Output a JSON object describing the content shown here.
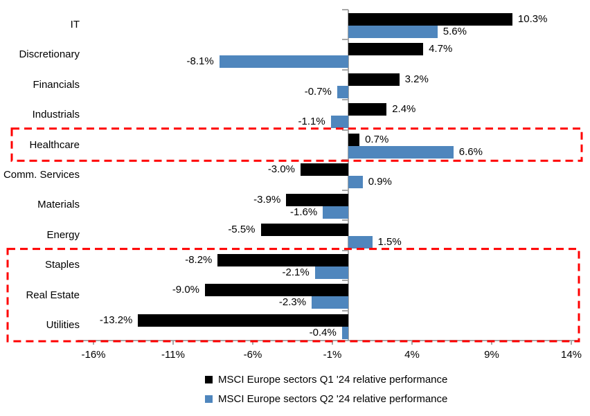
{
  "chart_data": {
    "type": "bar",
    "orientation": "horizontal",
    "title": "",
    "categories": [
      "IT",
      "Discretionary",
      "Financials",
      "Industrials",
      "Healthcare",
      "Comm. Services",
      "Materials",
      "Energy",
      "Staples",
      "Real Estate",
      "Utilities"
    ],
    "series": [
      {
        "name": "MSCI Europe sectors Q1 '24 relative performance",
        "color": "#000000",
        "values": [
          10.3,
          4.7,
          3.2,
          2.4,
          0.7,
          -3.0,
          -3.9,
          -5.5,
          -8.2,
          -9.0,
          -13.2
        ],
        "labels": [
          "10.3%",
          "4.7%",
          "3.2%",
          "2.4%",
          "0.7%",
          "-3.0%",
          "-3.9%",
          "-5.5%",
          "-8.2%",
          "-9.0%",
          "-13.2%"
        ]
      },
      {
        "name": "MSCI Europe sectors Q2 '24 relative performance",
        "color": "#4f86bd",
        "values": [
          5.6,
          -8.1,
          -0.7,
          -1.1,
          6.6,
          0.9,
          -1.6,
          1.5,
          -2.1,
          -2.3,
          -0.4
        ],
        "labels": [
          "5.6%",
          "-8.1%",
          "-0.7%",
          "-1.1%",
          "6.6%",
          "0.9%",
          "-1.6%",
          "1.5%",
          "-2.1%",
          "-2.3%",
          "-0.4%"
        ]
      }
    ],
    "x_axis": {
      "ticks": [
        "-16%",
        "-11%",
        "-6%",
        "-1%",
        "4%",
        "9%",
        "14%"
      ],
      "tick_values": [
        -16,
        -11,
        -6,
        -1,
        4,
        9,
        14
      ],
      "min": -17,
      "max": 14.5,
      "grid": false
    },
    "highlights": [
      {
        "sectors": [
          "Healthcare"
        ]
      },
      {
        "sectors": [
          "Staples",
          "Real Estate",
          "Utilities"
        ]
      }
    ],
    "highlight_color": "#ff0000",
    "axis_color": "#a6a6a6",
    "legend_position": "bottom"
  }
}
